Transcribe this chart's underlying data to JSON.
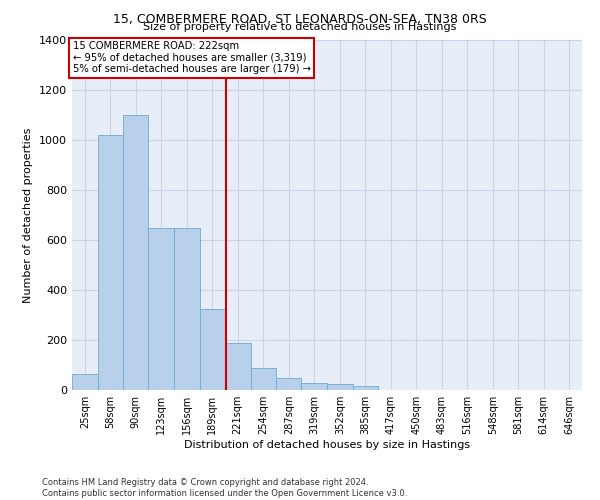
{
  "title1": "15, COMBERMERE ROAD, ST LEONARDS-ON-SEA, TN38 0RS",
  "title2": "Size of property relative to detached houses in Hastings",
  "xlabel": "Distribution of detached houses by size in Hastings",
  "ylabel": "Number of detached properties",
  "footnote1": "Contains HM Land Registry data © Crown copyright and database right 2024.",
  "footnote2": "Contains public sector information licensed under the Open Government Licence v3.0.",
  "annotation_line1": "15 COMBERMERE ROAD: 222sqm",
  "annotation_line2": "← 95% of detached houses are smaller (3,319)",
  "annotation_line3": "5% of semi-detached houses are larger (179) →",
  "bar_edges": [
    25,
    58,
    90,
    123,
    156,
    189,
    221,
    254,
    287,
    319,
    352,
    385,
    417,
    450,
    483,
    516,
    548,
    581,
    614,
    646,
    679
  ],
  "bar_values": [
    65,
    1020,
    1100,
    650,
    650,
    325,
    190,
    90,
    50,
    30,
    25,
    15,
    0,
    0,
    0,
    0,
    0,
    0,
    0,
    0
  ],
  "bar_color": "#b8d0ea",
  "bar_edge_color": "#6aaad4",
  "grid_color": "#c8d4e8",
  "background_color": "#e8eef8",
  "vline_color": "#cc0000",
  "vline_x": 222,
  "annotation_box_color": "#cc0000",
  "ylim": [
    0,
    1400
  ],
  "yticks": [
    0,
    200,
    400,
    600,
    800,
    1000,
    1200,
    1400
  ]
}
